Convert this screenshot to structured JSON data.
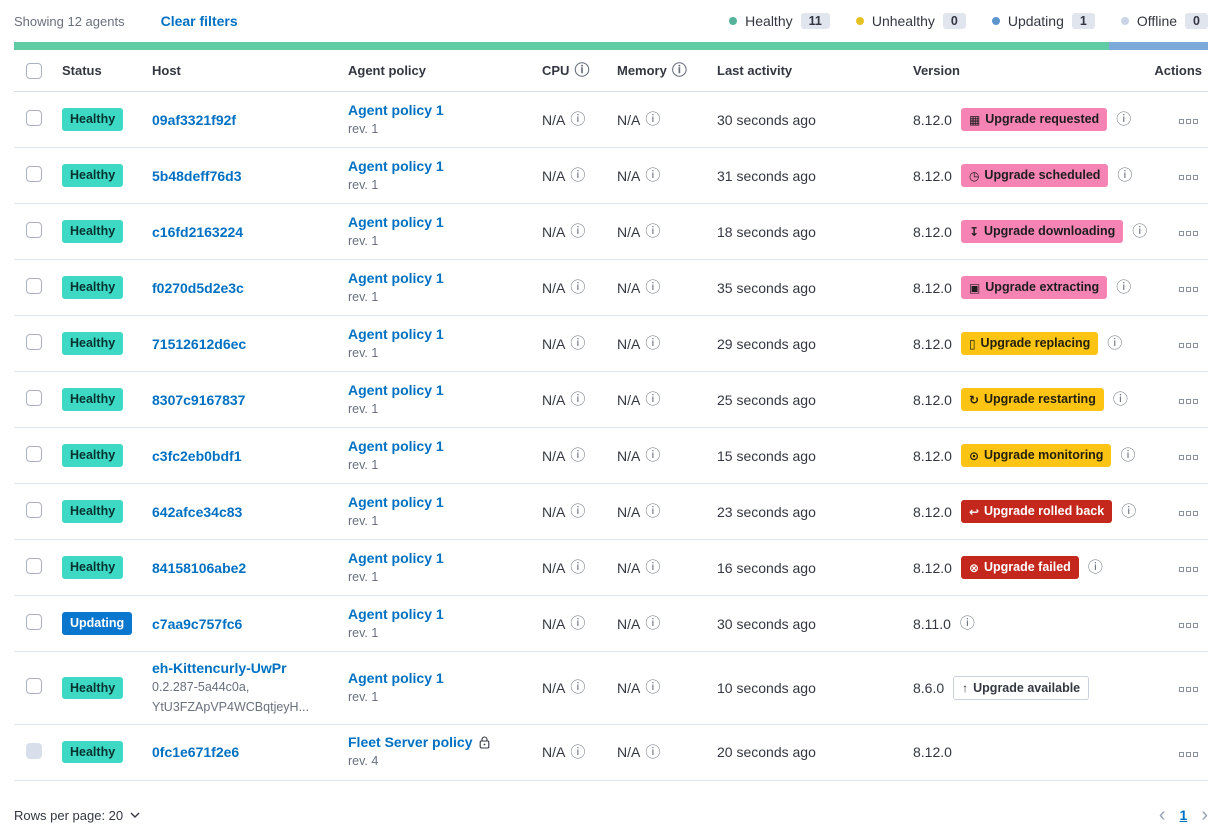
{
  "toolbar": {
    "showing": "Showing 12 agents",
    "clear_filters": "Clear filters"
  },
  "legend": {
    "items": [
      {
        "label": "Healthy",
        "count": "11",
        "color": "#54b399"
      },
      {
        "label": "Unhealthy",
        "count": "0",
        "color": "#e5c224"
      },
      {
        "label": "Updating",
        "count": "1",
        "color": "#5e94cc"
      },
      {
        "label": "Offline",
        "count": "0",
        "color": "#c9d4e6"
      }
    ]
  },
  "progress_bar": {
    "segments": [
      {
        "name": "healthy",
        "color": "#60cca4",
        "pct": 91.67
      },
      {
        "name": "updating",
        "color": "#7aa9da",
        "pct": 8.33
      }
    ]
  },
  "table": {
    "headers": {
      "status": "Status",
      "host": "Host",
      "policy": "Agent policy",
      "cpu": "CPU",
      "memory": "Memory",
      "last_activity": "Last activity",
      "version": "Version",
      "actions": "Actions"
    },
    "rows": [
      {
        "status": "Healthy",
        "variant": "healthy",
        "host": "09af3321f92f",
        "host_sub": [],
        "policy": "Agent policy 1",
        "rev": "rev. 1",
        "locked": false,
        "cpu": "N/A",
        "memory": "N/A",
        "last": "30 seconds ago",
        "version": "8.12.0",
        "badge": {
          "label": "Upgrade requested",
          "icon": "calendar-icon",
          "variant": "accent"
        },
        "info": true,
        "disabled": false
      },
      {
        "status": "Healthy",
        "variant": "healthy",
        "host": "5b48deff76d3",
        "host_sub": [],
        "policy": "Agent policy 1",
        "rev": "rev. 1",
        "locked": false,
        "cpu": "N/A",
        "memory": "N/A",
        "last": "31 seconds ago",
        "version": "8.12.0",
        "badge": {
          "label": "Upgrade scheduled",
          "icon": "clock-icon",
          "variant": "accent"
        },
        "info": true,
        "disabled": false
      },
      {
        "status": "Healthy",
        "variant": "healthy",
        "host": "c16fd2163224",
        "host_sub": [],
        "policy": "Agent policy 1",
        "rev": "rev. 1",
        "locked": false,
        "cpu": "N/A",
        "memory": "N/A",
        "last": "18 seconds ago",
        "version": "8.12.0",
        "badge": {
          "label": "Upgrade downloading",
          "icon": "download-icon",
          "variant": "accent"
        },
        "info": true,
        "disabled": false
      },
      {
        "status": "Healthy",
        "variant": "healthy",
        "host": "f0270d5d2e3c",
        "host_sub": [],
        "policy": "Agent policy 1",
        "rev": "rev. 1",
        "locked": false,
        "cpu": "N/A",
        "memory": "N/A",
        "last": "35 seconds ago",
        "version": "8.12.0",
        "badge": {
          "label": "Upgrade extracting",
          "icon": "package-icon",
          "variant": "accent"
        },
        "info": true,
        "disabled": false
      },
      {
        "status": "Healthy",
        "variant": "healthy",
        "host": "71512612d6ec",
        "host_sub": [],
        "policy": "Agent policy 1",
        "rev": "rev. 1",
        "locked": false,
        "cpu": "N/A",
        "memory": "N/A",
        "last": "29 seconds ago",
        "version": "8.12.0",
        "badge": {
          "label": "Upgrade replacing",
          "icon": "document-icon",
          "variant": "warning"
        },
        "info": true,
        "disabled": false
      },
      {
        "status": "Healthy",
        "variant": "healthy",
        "host": "8307c9167837",
        "host_sub": [],
        "policy": "Agent policy 1",
        "rev": "rev. 1",
        "locked": false,
        "cpu": "N/A",
        "memory": "N/A",
        "last": "25 seconds ago",
        "version": "8.12.0",
        "badge": {
          "label": "Upgrade restarting",
          "icon": "refresh-icon",
          "variant": "warning"
        },
        "info": true,
        "disabled": false
      },
      {
        "status": "Healthy",
        "variant": "healthy",
        "host": "c3fc2eb0bdf1",
        "host_sub": [],
        "policy": "Agent policy 1",
        "rev": "rev. 1",
        "locked": false,
        "cpu": "N/A",
        "memory": "N/A",
        "last": "15 seconds ago",
        "version": "8.12.0",
        "badge": {
          "label": "Upgrade monitoring",
          "icon": "monitoring-icon",
          "variant": "warning"
        },
        "info": true,
        "disabled": false
      },
      {
        "status": "Healthy",
        "variant": "healthy",
        "host": "642afce34c83",
        "host_sub": [],
        "policy": "Agent policy 1",
        "rev": "rev. 1",
        "locked": false,
        "cpu": "N/A",
        "memory": "N/A",
        "last": "23 seconds ago",
        "version": "8.12.0",
        "badge": {
          "label": "Upgrade rolled back",
          "icon": "rollback-icon",
          "variant": "danger"
        },
        "info": true,
        "disabled": false
      },
      {
        "status": "Healthy",
        "variant": "healthy",
        "host": "84158106abe2",
        "host_sub": [],
        "policy": "Agent policy 1",
        "rev": "rev. 1",
        "locked": false,
        "cpu": "N/A",
        "memory": "N/A",
        "last": "16 seconds ago",
        "version": "8.12.0",
        "badge": {
          "label": "Upgrade failed",
          "icon": "failed-icon",
          "variant": "danger"
        },
        "info": true,
        "disabled": false
      },
      {
        "status": "Updating",
        "variant": "updating",
        "host": "c7aa9c757fc6",
        "host_sub": [],
        "policy": "Agent policy 1",
        "rev": "rev. 1",
        "locked": false,
        "cpu": "N/A",
        "memory": "N/A",
        "last": "30 seconds ago",
        "version": "8.11.0",
        "badge": null,
        "info": true,
        "disabled": false
      },
      {
        "status": "Healthy",
        "variant": "healthy",
        "host": "eh-Kittencurly-UwPr",
        "host_sub": [
          "0.2.287-5a44c0a,",
          "YtU3FZApVP4WCBqtjeyH..."
        ],
        "policy": "Agent policy 1",
        "rev": "rev. 1",
        "locked": false,
        "cpu": "N/A",
        "memory": "N/A",
        "last": "10 seconds ago",
        "version": "8.6.0",
        "badge": {
          "label": "Upgrade available",
          "icon": "upgrade-icon",
          "variant": "hollow"
        },
        "info": false,
        "disabled": false
      },
      {
        "status": "Healthy",
        "variant": "healthy",
        "host": "0fc1e671f2e6",
        "host_sub": [],
        "policy": "Fleet Server policy",
        "rev": "rev. 4",
        "locked": true,
        "cpu": "N/A",
        "memory": "N/A",
        "last": "20 seconds ago",
        "version": "8.12.0",
        "badge": null,
        "info": false,
        "disabled": true
      }
    ]
  },
  "footer": {
    "rows_per_page": "Rows per page: 20",
    "page": "1"
  },
  "colors": {
    "healthy_badge": "#3dd9c4",
    "updating_badge": "#0a77ce",
    "accent_badge": "#f584b4",
    "warning_badge": "#fdc413",
    "danger_badge": "#c4281d",
    "link": "#0071c2"
  }
}
